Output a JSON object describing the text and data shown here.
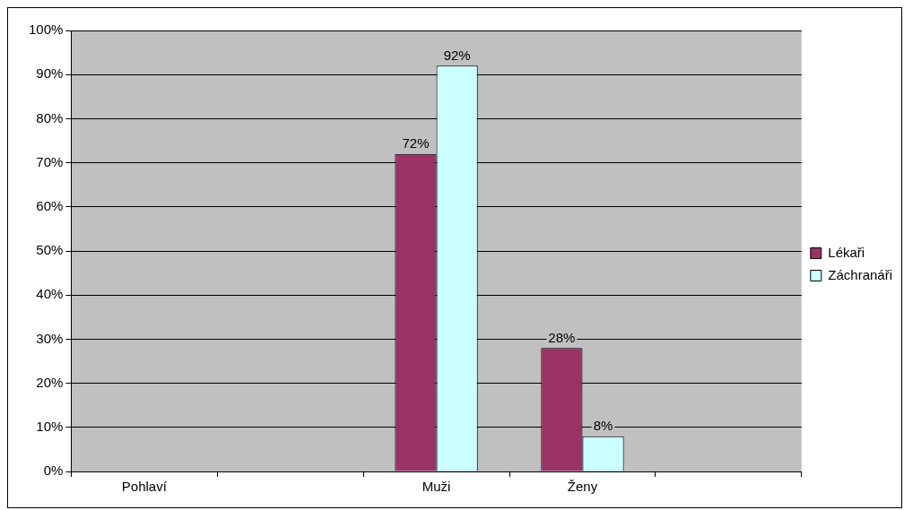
{
  "chart_data": {
    "type": "bar",
    "categories": [
      "Pohlaví",
      null,
      "Muži",
      "Ženy",
      null
    ],
    "series": [
      {
        "name": "Lékaři",
        "color": "#993366",
        "values": [
          null,
          null,
          72,
          28,
          null
        ],
        "value_labels": [
          null,
          null,
          "72%",
          "28%",
          null
        ]
      },
      {
        "name": "Záchranáři",
        "color": "#ccffff",
        "values": [
          null,
          null,
          92,
          8,
          null
        ],
        "value_labels": [
          null,
          null,
          "92%",
          "8%",
          null
        ]
      }
    ],
    "ylim": [
      0,
      100
    ],
    "yticks": [
      {
        "value": 0,
        "label": "0%"
      },
      {
        "value": 10,
        "label": "10%"
      },
      {
        "value": 20,
        "label": "20%"
      },
      {
        "value": 30,
        "label": "30%"
      },
      {
        "value": 40,
        "label": "40%"
      },
      {
        "value": 50,
        "label": "50%"
      },
      {
        "value": 60,
        "label": "60%"
      },
      {
        "value": 70,
        "label": "70%"
      },
      {
        "value": 80,
        "label": "80%"
      },
      {
        "value": 90,
        "label": "90%"
      },
      {
        "value": 100,
        "label": "100%"
      }
    ],
    "grid": "y",
    "legend": "right"
  }
}
